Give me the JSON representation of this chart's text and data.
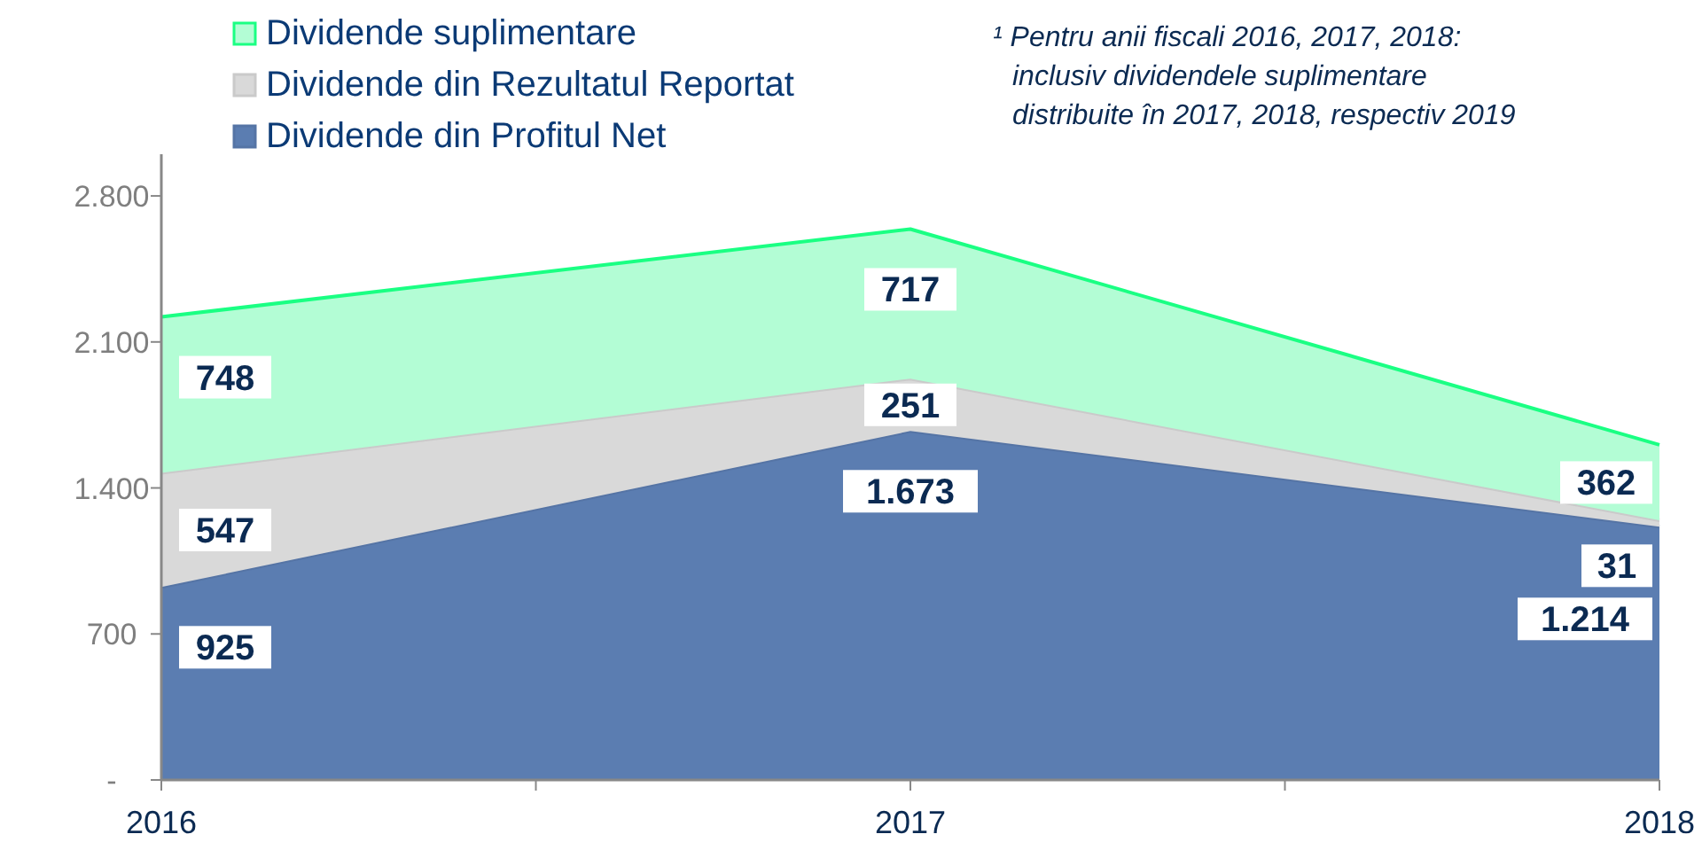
{
  "chart_data": {
    "type": "area",
    "stacked": true,
    "x": [
      2016,
      2017,
      2018
    ],
    "xlim": [
      2016,
      2018
    ],
    "xticks": [
      2016,
      {
        "value": 2016.5,
        "label": null
      },
      2017,
      {
        "value": 2017.5,
        "label": null
      },
      2018
    ],
    "ylim": [
      0,
      3000
    ],
    "yticks": [
      {
        "value": 0,
        "label": "-"
      },
      700,
      {
        "value": 1400,
        "label": "1.400"
      },
      {
        "value": 2100,
        "label": "2.100"
      },
      {
        "value": 2800,
        "label": "2.800"
      }
    ],
    "series": [
      {
        "name": "Dividende din Profitul Net",
        "color": "#5b7db1",
        "values": [
          925,
          1673,
          1214
        ],
        "value_labels": [
          "925",
          "1.673",
          "1.214"
        ]
      },
      {
        "name": "Dividende din Rezultatul Reportat",
        "color": "#d9d9d9",
        "values": [
          547,
          251,
          31
        ],
        "value_labels": [
          "547",
          "251",
          "31"
        ]
      },
      {
        "name": "Dividende suplimentare",
        "color": "#b3fdd5",
        "values": [
          748,
          717,
          362
        ],
        "value_labels": [
          "748",
          "717",
          "362"
        ]
      }
    ],
    "legend": "top left",
    "grid": false,
    "annotations": [
      "¹ Pentru anii fiscali 2016, 2017, 2018:\ninclusiv dividendele suplimentare\ndistribuite în 2017, 2018, respectiv 2019"
    ]
  }
}
